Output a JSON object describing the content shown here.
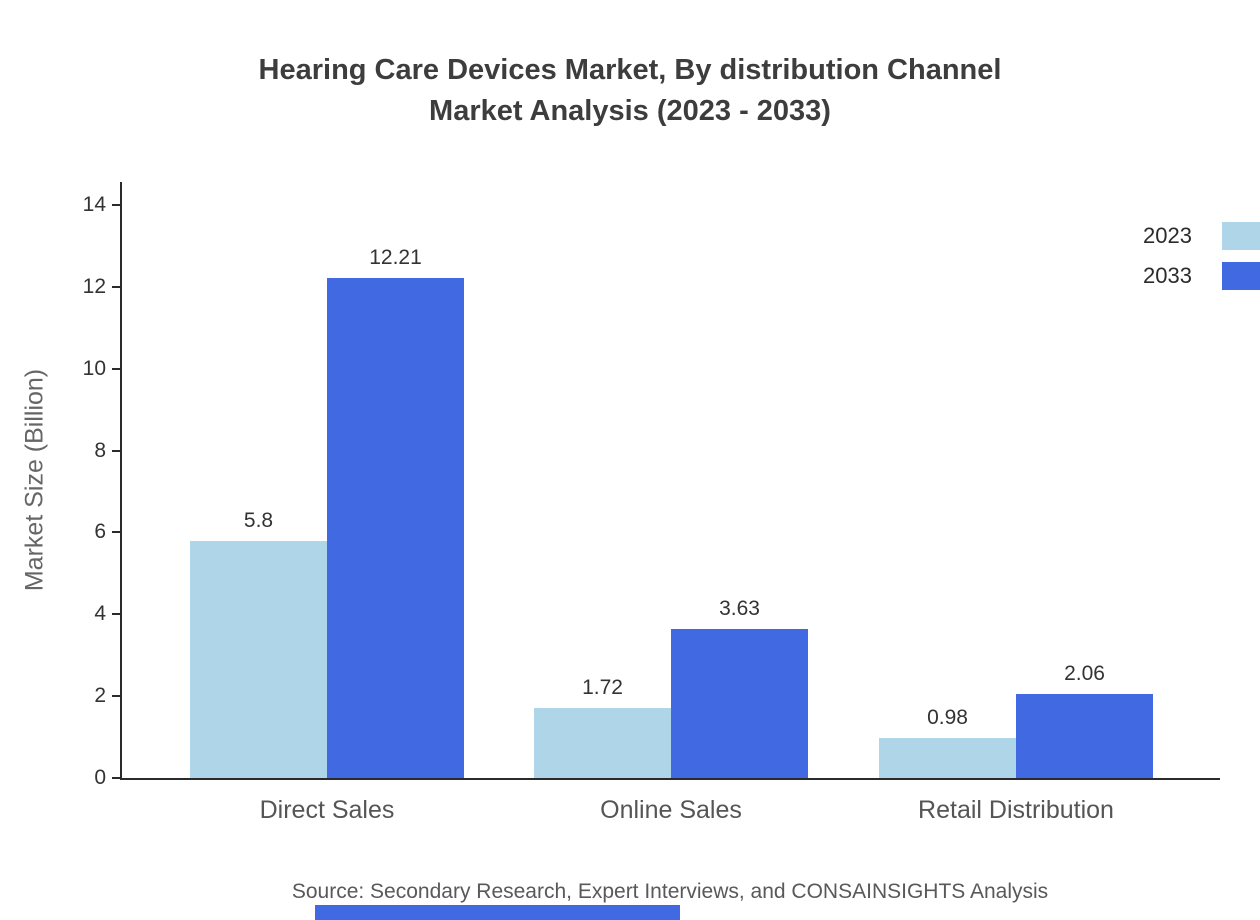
{
  "title": {
    "line1": "Hearing Care Devices Market, By distribution Channel",
    "line2": "Market Analysis (2023 - 2033)"
  },
  "chart_data": {
    "type": "bar",
    "categories": [
      "Direct Sales",
      "Online Sales",
      "Retail Distribution"
    ],
    "series": [
      {
        "name": "2023",
        "color": "#aed6e8",
        "values": [
          5.8,
          1.72,
          0.98
        ]
      },
      {
        "name": "2033",
        "color": "#4169e1",
        "values": [
          12.21,
          3.63,
          2.06
        ]
      }
    ],
    "value_labels": [
      [
        "5.8",
        "1.72",
        "0.98"
      ],
      [
        "12.21",
        "3.63",
        "2.06"
      ]
    ],
    "xlabel": "",
    "ylabel": "Market Size (Billion)",
    "ylim": [
      0,
      14
    ],
    "ytick_step": 2,
    "grid": false,
    "legend_position": "top-right"
  },
  "source": "Source: Secondary Research, Expert Interviews, and CONSAINSIGHTS Analysis",
  "colors": {
    "accent": "#4169e1",
    "axis": "#2b2b2b",
    "footer_bar": "#4169e1"
  }
}
